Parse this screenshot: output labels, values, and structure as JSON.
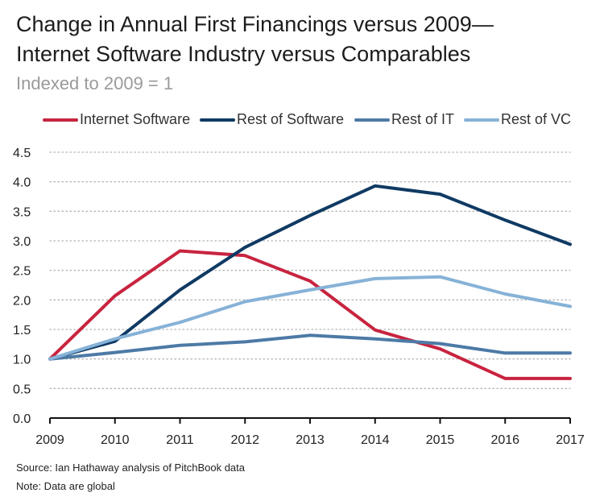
{
  "title_line1": "Change in Annual First Financings versus 2009—",
  "title_line2": "Internet Software Industry versus Comparables",
  "subtitle": "Indexed to 2009 = 1",
  "source": "Source: Ian Hathaway analysis of PitchBook data",
  "note": "Note: Data are global",
  "chart_data": {
    "type": "line",
    "x": [
      2009,
      2010,
      2011,
      2012,
      2013,
      2014,
      2015,
      2016,
      2017
    ],
    "x_tick_labels": [
      "2009",
      "2010",
      "2011",
      "2012",
      "2013",
      "2014",
      "2015",
      "2016",
      "2017"
    ],
    "ylim": [
      0,
      4.5
    ],
    "y_ticks": [
      0,
      0.5,
      1.0,
      1.5,
      2.0,
      2.5,
      3.0,
      3.5,
      4.0,
      4.5
    ],
    "y_tick_labels": [
      "0.0",
      "0.5",
      "1.0",
      "1.5",
      "2.0",
      "2.5",
      "3.0",
      "3.5",
      "4.0",
      "4.5"
    ],
    "grid": "horizontal dotted",
    "legend_position": "top",
    "series": [
      {
        "name": "Internet Software",
        "color": "#c8243f",
        "values": [
          1.0,
          2.07,
          2.83,
          2.75,
          2.32,
          1.49,
          1.17,
          0.67,
          0.67
        ]
      },
      {
        "name": "Rest of Software",
        "color": "#0f3a63",
        "values": [
          1.0,
          1.3,
          2.17,
          2.89,
          3.43,
          3.93,
          3.79,
          3.35,
          2.94
        ]
      },
      {
        "name": "Rest of IT",
        "color": "#4d7aa6",
        "values": [
          1.0,
          1.11,
          1.23,
          1.29,
          1.4,
          1.34,
          1.26,
          1.1,
          1.1
        ]
      },
      {
        "name": "Rest of VC",
        "color": "#86b2d7",
        "values": [
          1.0,
          1.34,
          1.62,
          1.97,
          2.17,
          2.36,
          2.39,
          2.1,
          1.89
        ]
      }
    ]
  }
}
